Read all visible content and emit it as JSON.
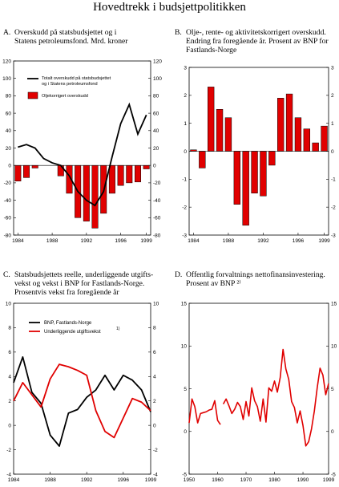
{
  "page": {
    "title": "Hovedtrekk i budsjettpolitikken"
  },
  "panels": [
    {
      "letter": "A.",
      "lines": [
        "Overskudd på statsbudsjettet og i",
        "Statens petroleumsfond. Mrd.  kroner"
      ]
    },
    {
      "letter": "B.",
      "lines": [
        "Olje-, rente- og aktivitetskorrigert overskudd.",
        "Endring fra foregående år. Prosent av BNP for",
        "Fastlands-Norge"
      ]
    },
    {
      "letter": "C.",
      "lines": [
        "Statsbudsjettets reelle, underliggende utgifts-",
        "vekst og vekst i BNP for Fastlands-Norge.",
        "Prosentvis vekst fra foregående år"
      ]
    },
    {
      "letter": "D.",
      "lines": [
        "Offentlig forvaltnings nettofinansinvestering.",
        "Prosent av BNP ²⁾"
      ]
    }
  ],
  "chart_data": [
    {
      "type": "bar",
      "title": "Overskudd på statsbudsjettet og i Statens petroleumsfond. Mrd.  kroner",
      "x": [
        1984,
        1985,
        1986,
        1987,
        1988,
        1989,
        1990,
        1991,
        1992,
        1993,
        1994,
        1995,
        1996,
        1997,
        1998,
        1999
      ],
      "xticks": [
        "1984",
        "1988",
        "1992",
        "1996",
        "1999"
      ],
      "ylim": [
        -80,
        120
      ],
      "yticks": [
        "120",
        "100",
        "80",
        "60",
        "40",
        "20",
        "0",
        "-20",
        "-40",
        "-60",
        "-80"
      ],
      "series": [
        {
          "name": "Totalt overskudd på statsbudsjettet og i Statens petroleumsfond",
          "type": "line",
          "color": "#000000",
          "values": [
            21,
            24,
            20,
            8,
            3,
            0,
            -12,
            -30,
            -40,
            -46,
            -30,
            10,
            48,
            70,
            36,
            58
          ]
        },
        {
          "name": "Oljekorrigert overskudd",
          "type": "bar",
          "color": "#e00000",
          "values": [
            -18,
            -14,
            -3,
            0,
            0,
            -12,
            -32,
            -60,
            -64,
            -72,
            -55,
            -32,
            -23,
            -20,
            -19,
            -4
          ]
        }
      ],
      "legend": [
        "Totalt overskudd på statsbudsjettet",
        "og i Statens petroleumsfond",
        "Oljekorrigert overskudd"
      ],
      "legend_position": "top-left",
      "grid": false
    },
    {
      "type": "bar",
      "title": "Olje-, rente- og aktivitetskorrigert overskudd. Endring fra foregående år. Prosent av BNP for Fastlands-Norge",
      "x": [
        1984,
        1985,
        1986,
        1987,
        1988,
        1989,
        1990,
        1991,
        1992,
        1993,
        1994,
        1995,
        1996,
        1997,
        1998,
        1999
      ],
      "xticks": [
        "1984",
        "1988",
        "1992",
        "1996",
        "1999"
      ],
      "ylim": [
        -3,
        3
      ],
      "yticks": [
        "3",
        "2",
        "1",
        "0",
        "-1",
        "-2",
        "-3"
      ],
      "series": [
        {
          "name": "",
          "type": "bar",
          "color": "#e00000",
          "values": [
            0.05,
            -0.6,
            2.3,
            1.5,
            1.2,
            -1.9,
            -2.65,
            -1.5,
            -1.6,
            -0.5,
            1.9,
            2.05,
            1.2,
            0.8,
            0.3,
            0.9
          ]
        }
      ],
      "grid": false
    },
    {
      "type": "line",
      "title": "Statsbudsjettets reelle, underliggende utgiftsvekst og vekst i BNP for Fastlands-Norge. Prosentvis vekst fra foregående år",
      "x": [
        1984,
        1985,
        1986,
        1987,
        1988,
        1989,
        1990,
        1991,
        1992,
        1993,
        1994,
        1995,
        1996,
        1997,
        1998,
        1999
      ],
      "xticks": [
        "1984",
        "1988",
        "1992",
        "1996",
        "1999"
      ],
      "ylim": [
        -4,
        10
      ],
      "yticks": [
        "10",
        "8",
        "6",
        "4",
        "2",
        "0",
        "-2",
        "-4"
      ],
      "series": [
        {
          "name": "BNP, Fastlands-Norge",
          "color": "#000000",
          "values": [
            3.5,
            5.6,
            2.7,
            1.8,
            -0.8,
            -1.7,
            1.0,
            1.3,
            2.3,
            2.9,
            4.1,
            2.9,
            4.1,
            3.7,
            2.9,
            1.1
          ]
        },
        {
          "name": "Underliggende utgiftsvekst",
          "footnote": "1)",
          "color": "#e00000",
          "values": [
            2.0,
            3.5,
            2.5,
            1.5,
            3.8,
            5.0,
            4.8,
            4.5,
            4.1,
            1.2,
            -0.5,
            -1.0,
            0.6,
            2.2,
            1.9,
            1.2
          ]
        }
      ],
      "legend_position": "top-left",
      "grid": false
    },
    {
      "type": "line",
      "title": "Offentlig forvaltnings nettofinansinvestering. Prosent av BNP",
      "title_footnote": "2)",
      "xlim": [
        1950,
        1999
      ],
      "xticks": [
        "1950",
        "1960",
        "1970",
        "1980",
        "1990",
        "1999"
      ],
      "ylim": [
        -5,
        15
      ],
      "yticks": [
        "15",
        "10",
        "5",
        "0",
        "-5"
      ],
      "series": [
        {
          "name": "",
          "color": "#e00000",
          "segments": [
            {
              "x": [
                1950,
                1951,
                1952,
                1953,
                1954,
                1955,
                1956,
                1957,
                1958,
                1959,
                1960,
                1961
              ],
              "values": [
                1.0,
                3.8,
                2.9,
                1.0,
                2.1,
                2.2,
                2.3,
                2.5,
                2.6,
                3.6,
                1.3,
                0.8
              ]
            },
            {
              "x": [
                1962,
                1963,
                1964,
                1965,
                1966,
                1967,
                1968,
                1969,
                1970,
                1971,
                1972,
                1973,
                1974,
                1975,
                1976,
                1977,
                1978,
                1979,
                1980,
                1981,
                1982,
                1983,
                1984,
                1985,
                1986,
                1987,
                1988,
                1989,
                1990,
                1991,
                1992,
                1993,
                1994,
                1995,
                1996,
                1997,
                1998,
                1999
              ],
              "values": [
                3.2,
                3.8,
                3.0,
                2.1,
                2.6,
                3.4,
                2.9,
                1.4,
                3.5,
                1.8,
                5.1,
                3.6,
                2.9,
                1.2,
                3.8,
                1.1,
                5.1,
                4.7,
                5.9,
                4.6,
                6.3,
                9.6,
                7.3,
                6.1,
                3.5,
                2.8,
                1.0,
                2.4,
                0.7,
                -1.7,
                -1.2,
                0.3,
                2.4,
                5.1,
                7.4,
                6.6,
                4.3,
                5.6
              ]
            }
          ]
        }
      ],
      "grid": false
    }
  ]
}
